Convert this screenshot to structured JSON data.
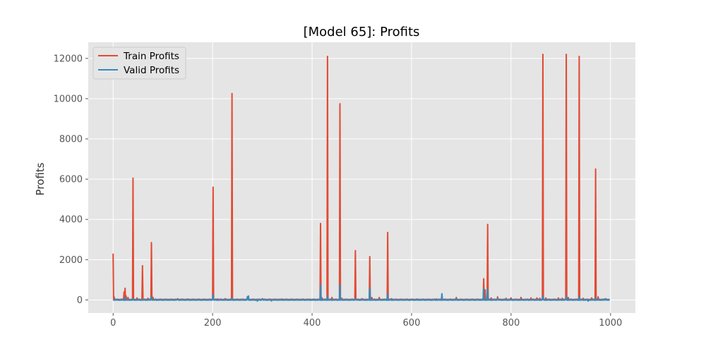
{
  "chart_data": {
    "type": "line",
    "title": "[Model 65]: Profits",
    "xlabel": "",
    "ylabel": "Profits",
    "xlim": [
      -50,
      1050
    ],
    "ylim": [
      -650,
      12800
    ],
    "xticks": [
      0,
      200,
      400,
      600,
      800,
      1000
    ],
    "yticks": [
      0,
      2000,
      4000,
      6000,
      8000,
      10000,
      12000
    ],
    "grid": true,
    "legend_position": "top-left",
    "series": [
      {
        "name": "Train Profits",
        "color": "#E24A33",
        "baseline": 20,
        "spikes": [
          [
            0,
            2300
          ],
          [
            2,
            150
          ],
          [
            22,
            400
          ],
          [
            24,
            580
          ],
          [
            26,
            200
          ],
          [
            30,
            120
          ],
          [
            40,
            6050
          ],
          [
            48,
            100
          ],
          [
            59,
            1700
          ],
          [
            70,
            80
          ],
          [
            77,
            2850
          ],
          [
            80,
            130
          ],
          [
            130,
            60
          ],
          [
            150,
            40
          ],
          [
            201,
            5600
          ],
          [
            210,
            50
          ],
          [
            225,
            60
          ],
          [
            239,
            10250
          ],
          [
            270,
            130
          ],
          [
            300,
            60
          ],
          [
            340,
            40
          ],
          [
            380,
            30
          ],
          [
            417,
            3800
          ],
          [
            420,
            100
          ],
          [
            431,
            12100
          ],
          [
            440,
            120
          ],
          [
            456,
            9750
          ],
          [
            460,
            80
          ],
          [
            487,
            2450
          ],
          [
            500,
            60
          ],
          [
            516,
            2150
          ],
          [
            520,
            120
          ],
          [
            535,
            120
          ],
          [
            552,
            3350
          ],
          [
            560,
            60
          ],
          [
            610,
            40
          ],
          [
            650,
            50
          ],
          [
            690,
            120
          ],
          [
            745,
            1050
          ],
          [
            748,
            500
          ],
          [
            753,
            3750
          ],
          [
            760,
            100
          ],
          [
            773,
            150
          ],
          [
            790,
            80
          ],
          [
            800,
            100
          ],
          [
            820,
            120
          ],
          [
            840,
            100
          ],
          [
            852,
            100
          ],
          [
            858,
            80
          ],
          [
            864,
            12200
          ],
          [
            870,
            100
          ],
          [
            895,
            100
          ],
          [
            903,
            80
          ],
          [
            911,
            12200
          ],
          [
            915,
            120
          ],
          [
            937,
            12100
          ],
          [
            945,
            80
          ],
          [
            962,
            100
          ],
          [
            970,
            6500
          ],
          [
            975,
            150
          ],
          [
            990,
            60
          ],
          [
            998,
            20
          ]
        ]
      },
      {
        "name": "Valid Profits",
        "color": "#348ABD",
        "baseline": 0,
        "spikes": [
          [
            0,
            20
          ],
          [
            24,
            120
          ],
          [
            40,
            60
          ],
          [
            77,
            160
          ],
          [
            130,
            40
          ],
          [
            201,
            250
          ],
          [
            239,
            90
          ],
          [
            270,
            160
          ],
          [
            272,
            200
          ],
          [
            290,
            -60
          ],
          [
            300,
            60
          ],
          [
            318,
            -50
          ],
          [
            417,
            750
          ],
          [
            431,
            200
          ],
          [
            456,
            750
          ],
          [
            487,
            60
          ],
          [
            516,
            600
          ],
          [
            552,
            300
          ],
          [
            610,
            40
          ],
          [
            661,
            310
          ],
          [
            690,
            60
          ],
          [
            745,
            550
          ],
          [
            753,
            550
          ],
          [
            773,
            60
          ],
          [
            800,
            40
          ],
          [
            864,
            200
          ],
          [
            911,
            200
          ],
          [
            937,
            150
          ],
          [
            955,
            -60
          ],
          [
            970,
            100
          ],
          [
            990,
            60
          ],
          [
            998,
            -30
          ]
        ]
      }
    ]
  }
}
